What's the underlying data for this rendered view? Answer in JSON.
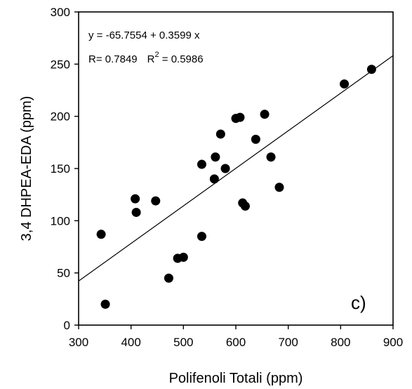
{
  "chart_data": {
    "type": "scatter",
    "xlabel": "Polifenoli Totali (ppm)",
    "ylabel": "3,4 DHPEA-EDA (ppm)",
    "xlim": [
      300,
      900
    ],
    "ylim": [
      0,
      300
    ],
    "xticks": [
      "300",
      "400",
      "500",
      "600",
      "700",
      "800",
      "900"
    ],
    "yticks": [
      "0",
      "50",
      "100",
      "150",
      "200",
      "250",
      "300"
    ],
    "grid": false,
    "points": [
      {
        "x": 343,
        "y": 87
      },
      {
        "x": 351,
        "y": 20
      },
      {
        "x": 408,
        "y": 121
      },
      {
        "x": 410,
        "y": 108
      },
      {
        "x": 447,
        "y": 119
      },
      {
        "x": 472,
        "y": 45
      },
      {
        "x": 489,
        "y": 64
      },
      {
        "x": 500,
        "y": 65
      },
      {
        "x": 535,
        "y": 85
      },
      {
        "x": 535,
        "y": 154
      },
      {
        "x": 559,
        "y": 140
      },
      {
        "x": 561,
        "y": 161
      },
      {
        "x": 571,
        "y": 183
      },
      {
        "x": 580,
        "y": 150
      },
      {
        "x": 600,
        "y": 198
      },
      {
        "x": 608,
        "y": 199
      },
      {
        "x": 613,
        "y": 117
      },
      {
        "x": 618,
        "y": 114
      },
      {
        "x": 638,
        "y": 178
      },
      {
        "x": 655,
        "y": 202
      },
      {
        "x": 667,
        "y": 161
      },
      {
        "x": 683,
        "y": 132
      },
      {
        "x": 807,
        "y": 231
      },
      {
        "x": 859,
        "y": 245
      }
    ],
    "regression": {
      "intercept": -65.7554,
      "slope": 0.3599,
      "equation": "y = -65.7554 + 0.3599 x",
      "r_label": "R= 0.7849",
      "r2_prefix": "R",
      "r2_sup": "2",
      "r2_value": " = 0.5986"
    },
    "panel_label": "c)"
  }
}
